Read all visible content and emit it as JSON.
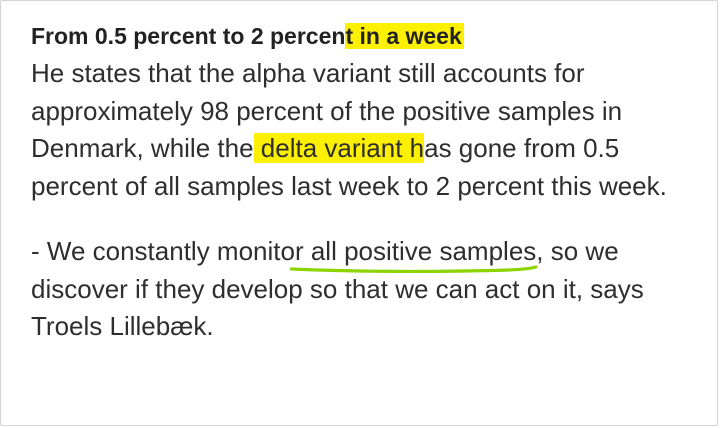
{
  "article": {
    "heading": {
      "before": "From 0.5 percent to 2 percen",
      "highlight": "t in a week"
    },
    "paragraph1": {
      "before": "He states that the alpha variant still accounts for approximately 98 percent of the positive samples in Denmark, while the",
      "highlight": " delta variant h",
      "after": "as gone from 0.5 percent of all samples last week to 2 percent this week."
    },
    "paragraph2": {
      "before": "- We constantly monito",
      "underlined": "r all positive samples",
      "after": ", so we discover if they develop so that we can act on it, says Troels Lillebæk."
    }
  },
  "colors": {
    "highlight": "#fdf002",
    "underline_marker": "#8bd400",
    "text": "#2e2e2e",
    "border": "#d4d4d4"
  }
}
